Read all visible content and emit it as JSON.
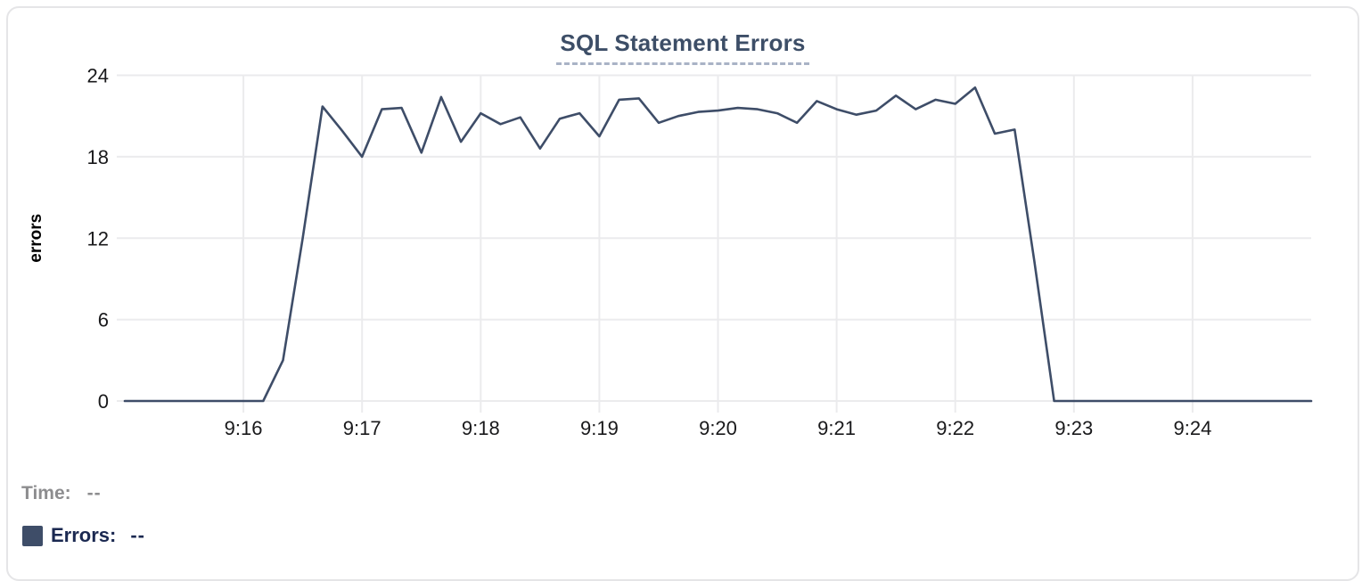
{
  "card": {
    "title": "SQL Statement Errors"
  },
  "chart_data": {
    "type": "line",
    "title": "SQL Statement Errors",
    "xlabel": "",
    "ylabel": "errors",
    "ylim": [
      0,
      24
    ],
    "yticks": [
      0,
      6,
      12,
      18,
      24
    ],
    "grid": true,
    "legend_position": "bottom-left",
    "x_start_time": "9:15:00",
    "x_end_time": "9:25:00",
    "point_interval_seconds": 10,
    "xticks": [
      {
        "label": "9:16",
        "seconds": 60
      },
      {
        "label": "9:17",
        "seconds": 120
      },
      {
        "label": "9:18",
        "seconds": 180
      },
      {
        "label": "9:19",
        "seconds": 240
      },
      {
        "label": "9:20",
        "seconds": 300
      },
      {
        "label": "9:21",
        "seconds": 360
      },
      {
        "label": "9:22",
        "seconds": 420
      },
      {
        "label": "9:23",
        "seconds": 480
      },
      {
        "label": "9:24",
        "seconds": 540
      }
    ],
    "series": [
      {
        "name": "Errors",
        "color": "#3e4d68",
        "values": [
          0,
          0,
          0,
          0,
          0,
          0,
          0,
          0,
          3,
          12,
          21.7,
          19.9,
          18,
          21.5,
          21.6,
          18.3,
          22.4,
          19.1,
          21.2,
          20.4,
          20.9,
          18.6,
          20.8,
          21.2,
          19.5,
          22.2,
          22.3,
          20.5,
          21,
          21.3,
          21.4,
          21.6,
          21.5,
          21.2,
          20.5,
          22.1,
          21.5,
          21.1,
          21.4,
          22.5,
          21.5,
          22.2,
          21.9,
          23.1,
          19.7,
          20,
          10.3,
          0,
          0,
          0,
          0,
          0,
          0,
          0,
          0,
          0,
          0,
          0,
          0,
          0,
          0
        ]
      }
    ]
  },
  "tooltip_readout": {
    "time_label": "Time:",
    "time_value": "--",
    "errors_label": "Errors:",
    "errors_value": "--",
    "swatch_color": "#3e4d68"
  },
  "colors": {
    "title": "#3d4e67",
    "title_underline": "#a9b3c6",
    "line": "#3e4d68",
    "grid": "#ebebed",
    "tick_text": "#19191b",
    "ylabel_text": "#000000",
    "time_label_gray": "#8d8d8f",
    "errors_label_navy": "#1b2951",
    "card_border": "#e5e5e7"
  }
}
